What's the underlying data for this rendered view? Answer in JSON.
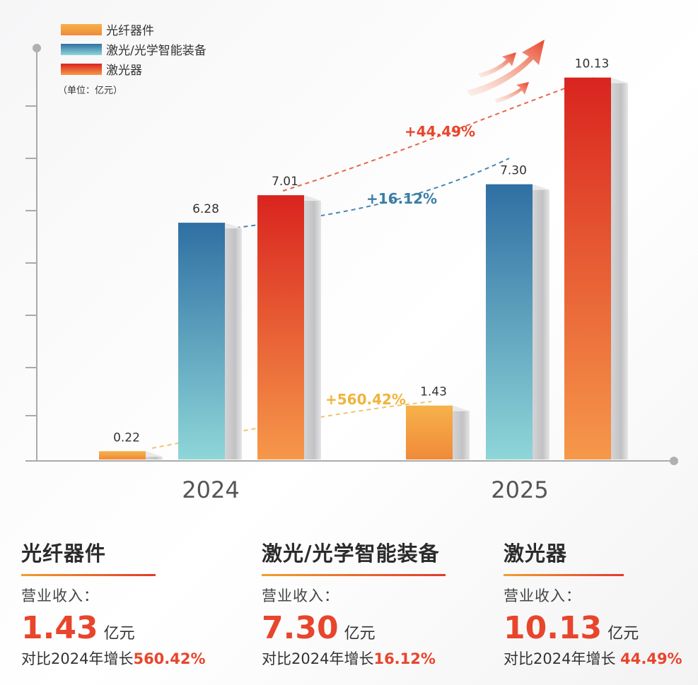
{
  "chart_data": {
    "type": "bar",
    "categories": [
      "2024",
      "2025"
    ],
    "series": [
      {
        "name": "光纤器件",
        "values": [
          0.22,
          1.43
        ],
        "color_top": "#f6b24a",
        "color_bottom": "#f08a3a"
      },
      {
        "name": "激光/光学智能装备",
        "values": [
          6.28,
          7.3
        ],
        "color_top": "#2f6fa3",
        "color_bottom": "#8ed6d8"
      },
      {
        "name": "激光器",
        "values": [
          7.01,
          10.13
        ],
        "color_top": "#d9241f",
        "color_bottom": "#f6984a"
      }
    ],
    "value_labels": {
      "s0": [
        "0.22",
        "1.43"
      ],
      "s1": [
        "6.28",
        "7.30"
      ],
      "s2": [
        "7.01",
        "10.13"
      ]
    },
    "growth_labels": [
      "+560.42%",
      "+16.12%",
      "+44.49%"
    ],
    "growth_colors": [
      "#f0b43a",
      "#3a7ea6",
      "#e8452c"
    ],
    "unit_note": "（单位：亿元）",
    "ylim": [
      0,
      10.5
    ],
    "legend_position": "top-left",
    "grid": false
  },
  "cards": [
    {
      "title": "光纤器件",
      "label": "营业收入：",
      "value": "1.43",
      "unit": "亿元",
      "growth_prefix": "对比2024年增长",
      "growth_value": "560.42%"
    },
    {
      "title": "激光/光学智能装备",
      "label": "营业收入：",
      "value": "7.30",
      "unit": "亿元",
      "growth_prefix": "对比2024年增长",
      "growth_value": "16.12%"
    },
    {
      "title": "激光器",
      "label": "营业收入：",
      "value": "10.13",
      "unit": "亿元",
      "growth_prefix": "对比2024年增长 ",
      "growth_value": "44.49%"
    }
  ],
  "accent_color": "#e8452c"
}
